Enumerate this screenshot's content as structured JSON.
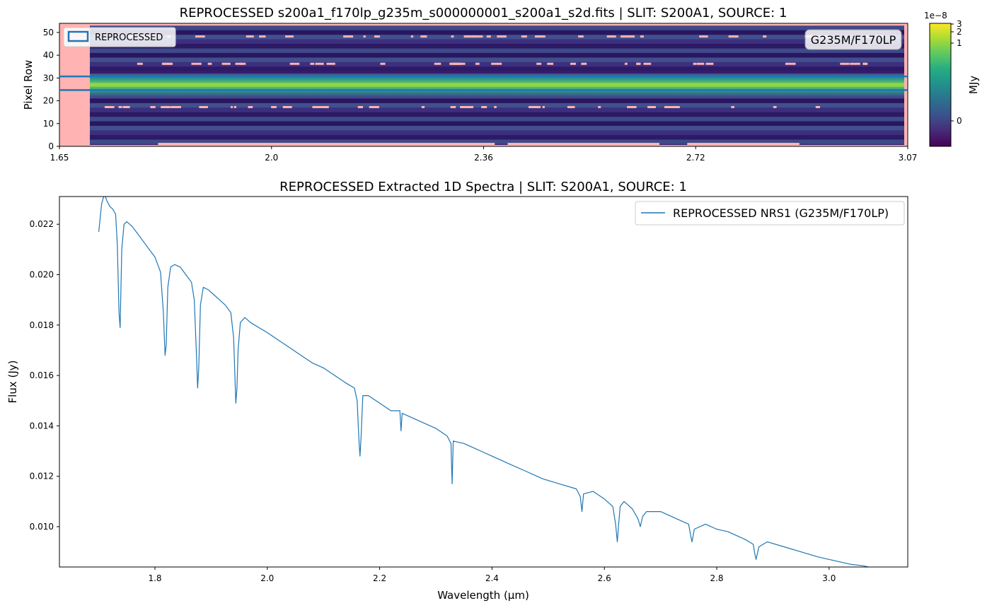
{
  "chart_data": [
    {
      "type": "heatmap",
      "title": "REPROCESSED s200a1_f170lp_g235m_s000000001_s200a1_s2d.fits | SLIT: S200A1, SOURCE: 1",
      "xlabel": "",
      "ylabel": "Pixel Row",
      "xlim": [
        1.65,
        3.07
      ],
      "ylim": [
        0,
        54
      ],
      "x_ticks": [
        "1.65",
        "2.0",
        "2.36",
        "2.72",
        "3.07"
      ],
      "y_ticks": [
        "0",
        "10",
        "20",
        "30",
        "40",
        "50"
      ],
      "legend": {
        "label": "REPROCESSED",
        "placement": "top-left"
      },
      "annotation": "G235M/F170LP",
      "extraction_region": {
        "y_low": 24.7,
        "y_high": 30.7,
        "color": "#1f77b4"
      },
      "trace_center_row": 27,
      "colorbar": {
        "label": "MJy",
        "scale_label": "1e−8",
        "ticks": [
          "0",
          "1",
          "2",
          "3"
        ],
        "colormap": "viridis"
      },
      "nan_color": "#ffb3b3"
    },
    {
      "type": "line",
      "title": "REPROCESSED Extracted 1D Spectra | SLIT: S200A1, SOURCE: 1",
      "xlabel": "Wavelength (µm)",
      "ylabel": "Flux (Jy)",
      "xlim": [
        1.63,
        3.14
      ],
      "ylim": [
        0.0084,
        0.0231
      ],
      "x_ticks": [
        "1.8",
        "2.0",
        "2.2",
        "2.4",
        "2.6",
        "2.8",
        "3.0"
      ],
      "y_ticks": [
        "0.010",
        "0.012",
        "0.014",
        "0.016",
        "0.018",
        "0.020",
        "0.022"
      ],
      "legend_placement": "top-right",
      "series": [
        {
          "name": "REPROCESSED NRS1 (G235M/F170LP)",
          "color": "#1f77b4",
          "x": [
            1.7,
            1.705,
            1.71,
            1.715,
            1.72,
            1.725,
            1.73,
            1.733,
            1.736,
            1.738,
            1.741,
            1.745,
            1.75,
            1.76,
            1.77,
            1.78,
            1.79,
            1.8,
            1.81,
            1.815,
            1.818,
            1.82,
            1.823,
            1.828,
            1.835,
            1.845,
            1.855,
            1.865,
            1.87,
            1.874,
            1.876,
            1.878,
            1.881,
            1.886,
            1.895,
            1.905,
            1.915,
            1.925,
            1.935,
            1.94,
            1.944,
            1.946,
            1.948,
            1.952,
            1.96,
            1.97,
            1.985,
            2.0,
            2.02,
            2.04,
            2.06,
            2.08,
            2.1,
            2.12,
            2.14,
            2.155,
            2.16,
            2.163,
            2.165,
            2.167,
            2.17,
            2.18,
            2.2,
            2.22,
            2.236,
            2.238,
            2.24,
            2.26,
            2.28,
            2.3,
            2.32,
            2.327,
            2.329,
            2.331,
            2.35,
            2.38,
            2.4,
            2.43,
            2.46,
            2.49,
            2.52,
            2.55,
            2.557,
            2.56,
            2.563,
            2.58,
            2.6,
            2.615,
            2.62,
            2.623,
            2.625,
            2.628,
            2.635,
            2.65,
            2.66,
            2.664,
            2.668,
            2.675,
            2.7,
            2.73,
            2.75,
            2.754,
            2.756,
            2.76,
            2.78,
            2.8,
            2.82,
            2.85,
            2.865,
            2.868,
            2.87,
            2.875,
            2.89,
            2.92,
            2.95,
            2.98,
            3.0,
            3.02,
            3.04,
            3.06,
            3.07
          ],
          "y": [
            0.0217,
            0.0228,
            0.0232,
            0.0229,
            0.0227,
            0.0226,
            0.0224,
            0.0212,
            0.0185,
            0.0179,
            0.021,
            0.022,
            0.0221,
            0.0219,
            0.0216,
            0.0213,
            0.021,
            0.0207,
            0.0201,
            0.0185,
            0.0168,
            0.0172,
            0.0195,
            0.0203,
            0.0204,
            0.0203,
            0.02,
            0.0197,
            0.019,
            0.0168,
            0.0155,
            0.0163,
            0.0188,
            0.0195,
            0.0194,
            0.0192,
            0.019,
            0.0188,
            0.0185,
            0.0175,
            0.0149,
            0.0155,
            0.017,
            0.0181,
            0.0183,
            0.0181,
            0.0179,
            0.0177,
            0.0174,
            0.0171,
            0.0168,
            0.0165,
            0.0163,
            0.016,
            0.0157,
            0.0155,
            0.015,
            0.0135,
            0.0128,
            0.0136,
            0.0152,
            0.0152,
            0.0149,
            0.0146,
            0.0146,
            0.0138,
            0.0145,
            0.0143,
            0.0141,
            0.0139,
            0.0136,
            0.0133,
            0.0117,
            0.0134,
            0.0133,
            0.013,
            0.0128,
            0.0125,
            0.0122,
            0.0119,
            0.0117,
            0.0115,
            0.0112,
            0.0106,
            0.0113,
            0.0114,
            0.0111,
            0.0108,
            0.0101,
            0.0094,
            0.01,
            0.0108,
            0.011,
            0.0107,
            0.0103,
            0.01,
            0.0104,
            0.0106,
            0.0106,
            0.0103,
            0.0101,
            0.0096,
            0.0094,
            0.0099,
            0.0101,
            0.0099,
            0.0098,
            0.0095,
            0.0093,
            0.0089,
            0.0087,
            0.0092,
            0.0094,
            0.0092,
            0.009,
            0.0088,
            0.0087,
            0.0086,
            0.0085,
            0.00845,
            0.0084
          ]
        }
      ]
    }
  ]
}
